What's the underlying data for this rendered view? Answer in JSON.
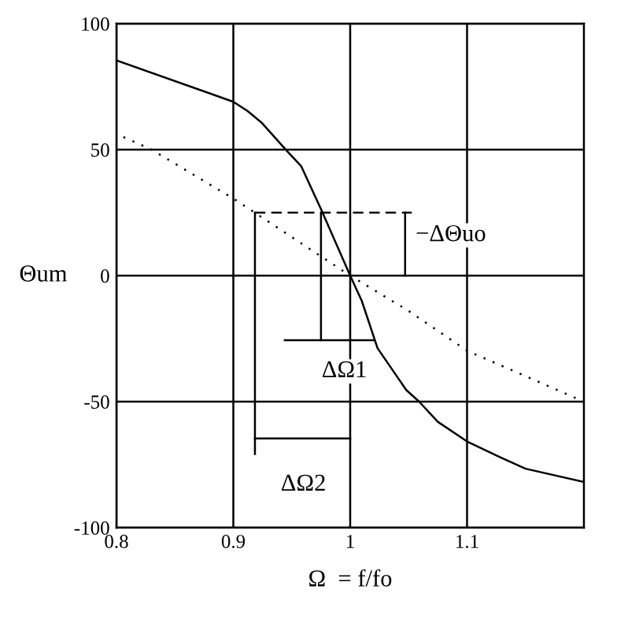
{
  "chart_data": {
    "type": "line",
    "xlabel": "Ω  = f/fo",
    "ylabel": "Θum",
    "xlim": [
      0.8,
      1.2
    ],
    "ylim": [
      -100,
      100
    ],
    "xticks": [
      0.8,
      0.9,
      1,
      1.1
    ],
    "yticks": [
      -100,
      -50,
      0,
      50,
      100
    ],
    "grid": true,
    "marker": "none",
    "series": [
      {
        "color": "#000000",
        "line_style": "solid",
        "x": [
          0.8,
          0.9,
          0.912,
          0.924,
          0.946,
          0.958,
          0.975,
          1.0,
          1.0099,
          1.0234,
          1.048,
          1.059,
          1.075,
          1.1,
          1.128,
          1.15,
          1.2
        ],
        "values": [
          85.4,
          69,
          65.4,
          60.8,
          49.4,
          43.5,
          26.4,
          0,
          -10,
          -28.8,
          -45.4,
          -50,
          -58,
          -65.8,
          -72,
          -76.6,
          -81.9
        ]
      },
      {
        "color": "#000000",
        "line_style": "dotted",
        "x": [
          0.806,
          0.83,
          0.9,
          1.0,
          1.05,
          1.1,
          1.2
        ],
        "values": [
          55,
          50,
          30.6,
          0,
          -14,
          -29.8,
          -50
        ]
      },
      {
        "color": "#000000",
        "line_style": "dashed",
        "x": [
          0.9185,
          1.0527
        ],
        "values": [
          25,
          25
        ]
      },
      {
        "color": "#000000",
        "line_style": "solid",
        "x": [
          0.9185,
          0.9185
        ],
        "values": [
          25,
          -70.8
        ]
      },
      {
        "color": "#000000",
        "line_style": "solid",
        "x": [
          0.975,
          0.975
        ],
        "values": [
          25,
          -25.6
        ]
      },
      {
        "color": "#000000",
        "line_style": "solid",
        "x": [
          1.047,
          1.047
        ],
        "values": [
          25,
          0
        ]
      },
      {
        "color": "#000000",
        "line_style": "solid",
        "x": [
          0.944,
          1.02
        ],
        "values": [
          -25.6,
          -25.6
        ]
      },
      {
        "color": "#000000",
        "line_style": "solid",
        "x": [
          0.9185,
          1.0
        ],
        "values": [
          -64.6,
          -64.6
        ]
      }
    ],
    "annotations": [
      "−ΔΘuo",
      {
        "text": "ΔΩ1",
        "x": 0.995,
        "y": -38
      },
      {
        "text": "ΔΩ2",
        "x": 0.96,
        "y": -83
      }
    ]
  }
}
